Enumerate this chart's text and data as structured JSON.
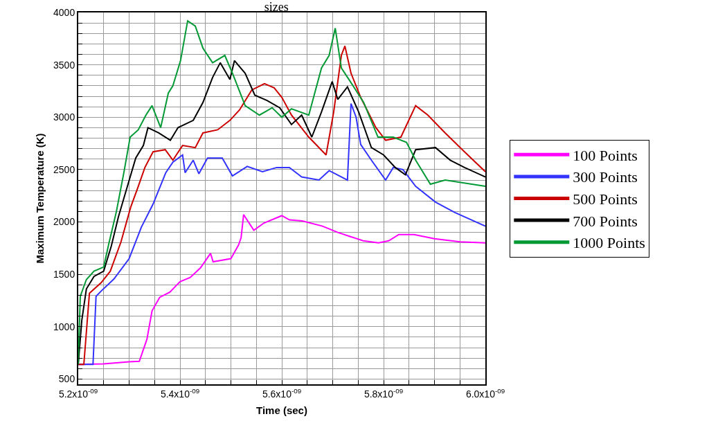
{
  "chart_data": {
    "type": "line",
    "title": "sizes",
    "xlabel": "Time (sec)",
    "ylabel": "Maximum Temperature (K)",
    "xlim": [
      5.2e-09,
      6e-09
    ],
    "ylim": [
      450,
      4000
    ],
    "xticks": [
      {
        "value": 5.2e-09,
        "label": "5.2x10$^{-09}$"
      },
      {
        "value": 5.25e-09,
        "label": null
      },
      {
        "value": 5.3e-09,
        "label": null
      },
      {
        "value": 5.35e-09,
        "label": null
      },
      {
        "value": 5.4e-09,
        "label": "5.4x10$^{-09}$"
      },
      {
        "value": 5.45e-09,
        "label": null
      },
      {
        "value": 5.5e-09,
        "label": null
      },
      {
        "value": 5.55e-09,
        "label": null
      },
      {
        "value": 5.6e-09,
        "label": "5.6x10$^{-09}$"
      },
      {
        "value": 5.65e-09,
        "label": null
      },
      {
        "value": 5.7e-09,
        "label": null
      },
      {
        "value": 5.75e-09,
        "label": null
      },
      {
        "value": 5.8e-09,
        "label": "5.8x10$^{-09}$"
      },
      {
        "value": 5.85e-09,
        "label": null
      },
      {
        "value": 5.9e-09,
        "label": null
      },
      {
        "value": 5.95e-09,
        "label": null
      },
      {
        "value": 6e-09,
        "label": "6.0x10$^{-09}$"
      }
    ],
    "yticks": [
      500,
      {
        "value": 600,
        "label": null
      },
      {
        "value": 700,
        "label": null
      },
      {
        "value": 800,
        "label": null
      },
      {
        "value": 900,
        "label": null
      },
      1000,
      {
        "value": 1100,
        "label": null
      },
      {
        "value": 1200,
        "label": null
      },
      {
        "value": 1300,
        "label": null
      },
      {
        "value": 1400,
        "label": null
      },
      1500,
      {
        "value": 1600,
        "label": null
      },
      {
        "value": 1700,
        "label": null
      },
      {
        "value": 1800,
        "label": null
      },
      {
        "value": 1900,
        "label": null
      },
      2000,
      {
        "value": 2100,
        "label": null
      },
      {
        "value": 2200,
        "label": null
      },
      {
        "value": 2300,
        "label": null
      },
      {
        "value": 2400,
        "label": null
      },
      2500,
      {
        "value": 2600,
        "label": null
      },
      {
        "value": 2700,
        "label": null
      },
      {
        "value": 2800,
        "label": null
      },
      {
        "value": 2900,
        "label": null
      },
      3000,
      {
        "value": 3100,
        "label": null
      },
      {
        "value": 3200,
        "label": null
      },
      {
        "value": 3300,
        "label": null
      },
      {
        "value": 3400,
        "label": null
      },
      3500,
      {
        "value": 3600,
        "label": null
      },
      {
        "value": 3700,
        "label": null
      },
      {
        "value": 3800,
        "label": null
      },
      {
        "value": 3900,
        "label": null
      },
      4000
    ],
    "grid": true,
    "legend": "right",
    "marker": "none",
    "line_style": "solid",
    "series": [
      {
        "name": "100 Points",
        "color": "#ff00ff",
        "x": [
          5.2e-09,
          5.25e-09,
          5.3e-09,
          5.32e-09,
          5.335e-09,
          5.345e-09,
          5.36e-09,
          5.38e-09,
          5.4e-09,
          5.42e-09,
          5.44e-09,
          5.46e-09,
          5.465e-09,
          5.5e-09,
          5.515e-09,
          5.52e-09,
          5.525e-09,
          5.545e-09,
          5.565e-09,
          5.6e-09,
          5.615e-09,
          5.64e-09,
          5.68e-09,
          5.71e-09,
          5.735e-09,
          5.76e-09,
          5.79e-09,
          5.81e-09,
          5.83e-09,
          5.86e-09,
          5.9e-09,
          5.95e-09,
          6e-09
        ],
        "values": [
          640,
          645,
          665,
          670,
          880,
          1150,
          1280,
          1330,
          1430,
          1470,
          1560,
          1700,
          1620,
          1650,
          1780,
          1850,
          2070,
          1920,
          1990,
          2060,
          2020,
          2010,
          1960,
          1900,
          1860,
          1820,
          1800,
          1820,
          1880,
          1880,
          1840,
          1810,
          1800
        ]
      },
      {
        "name": "300 Points",
        "color": "#3333ff",
        "x": [
          5.2e-09,
          5.229e-09,
          5.235e-09,
          5.245e-09,
          5.27e-09,
          5.3e-09,
          5.324e-09,
          5.347e-09,
          5.372e-09,
          5.386e-09,
          5.405e-09,
          5.41e-09,
          5.426e-09,
          5.437e-09,
          5.454e-09,
          5.483e-09,
          5.503e-09,
          5.532e-09,
          5.562e-09,
          5.59e-09,
          5.615e-09,
          5.639e-09,
          5.673e-09,
          5.693e-09,
          5.729e-09,
          5.736e-09,
          5.746e-09,
          5.755e-09,
          5.776e-09,
          5.804e-09,
          5.819e-09,
          5.838e-09,
          5.863e-09,
          5.902e-09,
          5.94e-09,
          6e-09
        ],
        "values": [
          640,
          640,
          1290,
          1340,
          1455,
          1650,
          1950,
          2170,
          2470,
          2570,
          2640,
          2470,
          2590,
          2460,
          2610,
          2610,
          2440,
          2530,
          2480,
          2520,
          2520,
          2430,
          2400,
          2490,
          2400,
          3130,
          3000,
          2740,
          2590,
          2400,
          2520,
          2500,
          2340,
          2190,
          2090,
          1960
        ]
      },
      {
        "name": "500 Points",
        "color": "#cc0000",
        "x": [
          5.2e-09,
          5.211e-09,
          5.222e-09,
          5.245e-09,
          5.263e-09,
          5.284e-09,
          5.303e-09,
          5.318e-09,
          5.331e-09,
          5.347e-09,
          5.371e-09,
          5.386e-09,
          5.405e-09,
          5.43e-09,
          5.445e-09,
          5.474e-09,
          5.498e-09,
          5.517e-09,
          5.541e-09,
          5.566e-09,
          5.585e-09,
          5.6e-09,
          5.619e-09,
          5.653e-09,
          5.687e-09,
          5.702e-09,
          5.717e-09,
          5.724e-09,
          5.736e-09,
          5.755e-09,
          5.785e-09,
          5.804e-09,
          5.834e-09,
          5.863e-09,
          5.887e-09,
          5.921e-09,
          5.959e-09,
          6e-09
        ],
        "values": [
          640,
          640,
          1320,
          1420,
          1530,
          1810,
          2140,
          2340,
          2520,
          2670,
          2690,
          2590,
          2730,
          2710,
          2850,
          2880,
          2970,
          3070,
          3260,
          3320,
          3280,
          3190,
          3020,
          2810,
          2640,
          3050,
          3590,
          3680,
          3420,
          3190,
          2900,
          2780,
          2810,
          3110,
          3020,
          2850,
          2670,
          2480
        ]
      },
      {
        "name": "700 Points",
        "color": "#000000",
        "x": [
          5.2e-09,
          5.207e-09,
          5.216e-09,
          5.231e-09,
          5.25e-09,
          5.265e-09,
          5.279e-09,
          5.299e-09,
          5.313e-09,
          5.328e-09,
          5.337e-09,
          5.358e-09,
          5.381e-09,
          5.396e-09,
          5.426e-09,
          5.445e-09,
          5.464e-09,
          5.479e-09,
          5.498e-09,
          5.507e-09,
          5.528e-09,
          5.547e-09,
          5.571e-09,
          5.596e-09,
          5.619e-09,
          5.639e-09,
          5.659e-09,
          5.678e-09,
          5.699e-09,
          5.71e-09,
          5.729e-09,
          5.751e-09,
          5.776e-09,
          5.8e-09,
          5.823e-09,
          5.843e-09,
          5.863e-09,
          5.902e-09,
          5.931e-09,
          5.959e-09,
          6e-09
        ],
        "values": [
          640,
          1060,
          1360,
          1480,
          1530,
          1770,
          2050,
          2380,
          2610,
          2730,
          2900,
          2850,
          2780,
          2900,
          2970,
          3140,
          3380,
          3520,
          3360,
          3540,
          3420,
          3210,
          3160,
          3090,
          2930,
          3020,
          2810,
          3050,
          3340,
          3170,
          3290,
          3050,
          2710,
          2640,
          2520,
          2450,
          2690,
          2710,
          2590,
          2520,
          2430
        ]
      },
      {
        "name": "1000 Points",
        "color": "#009933",
        "x": [
          5.2e-09,
          5.204e-09,
          5.216e-09,
          5.231e-09,
          5.25e-09,
          5.26e-09,
          5.275e-09,
          5.29e-09,
          5.302e-09,
          5.318e-09,
          5.333e-09,
          5.345e-09,
          5.362e-09,
          5.377e-09,
          5.386e-09,
          5.401e-09,
          5.415e-09,
          5.43e-09,
          5.445e-09,
          5.464e-09,
          5.488e-09,
          5.503e-09,
          5.528e-09,
          5.556e-09,
          5.581e-09,
          5.6e-09,
          5.619e-09,
          5.653e-09,
          5.678e-09,
          5.693e-09,
          5.705e-09,
          5.717e-09,
          5.736e-09,
          5.761e-09,
          5.789e-09,
          5.819e-09,
          5.845e-09,
          5.863e-09,
          5.892e-09,
          5.921e-09,
          6e-09
        ],
        "values": [
          640,
          1290,
          1450,
          1530,
          1570,
          1790,
          2100,
          2480,
          2810,
          2880,
          3020,
          3110,
          2900,
          3230,
          3300,
          3540,
          3920,
          3870,
          3660,
          3520,
          3590,
          3420,
          3110,
          3020,
          3090,
          3000,
          3080,
          3020,
          3470,
          3590,
          3850,
          3470,
          3330,
          3140,
          2810,
          2810,
          2760,
          2590,
          2360,
          2400,
          2340
        ]
      }
    ]
  }
}
